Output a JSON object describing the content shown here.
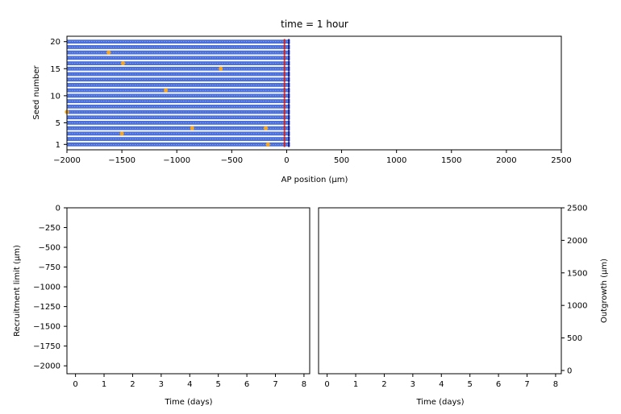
{
  "chart_data": [
    {
      "type": "scatter",
      "title": "time = 1 hour",
      "xlabel": "AP position (μm)",
      "ylabel": "Seed number",
      "xlim": [
        -2000,
        2500
      ],
      "ylim": [
        0,
        21
      ],
      "xticks": [
        "−2000",
        "−1500",
        "−1000",
        "−500",
        "0",
        "500",
        "1000",
        "1500",
        "2000",
        "2500"
      ],
      "yticks": [
        "1",
        "5",
        "10",
        "15",
        "20"
      ],
      "seeds": 20,
      "cell_extent": [
        -2000,
        30
      ],
      "colors": {
        "cells": "#4a6fd8",
        "recruited": "#f5a623",
        "boundary": "#cc2222",
        "tip": "#1a1a8c"
      },
      "recruited_cells": [
        {
          "x": -1620,
          "y": 18
        },
        {
          "x": -1490,
          "y": 16
        },
        {
          "x": -600,
          "y": 15
        },
        {
          "x": -1100,
          "y": 11
        },
        {
          "x": -2000,
          "y": 7
        },
        {
          "x": -860,
          "y": 4
        },
        {
          "x": -190,
          "y": 4
        },
        {
          "x": -1500,
          "y": 3
        },
        {
          "x": -170,
          "y": 1
        }
      ]
    },
    {
      "type": "line",
      "xlabel": "Time (days)",
      "ylabel": "Recruitment limit (μm)",
      "xlim": [
        -0.3,
        8.2
      ],
      "ylim": [
        -2100,
        0
      ],
      "xticks": [
        "0",
        "1",
        "2",
        "3",
        "4",
        "5",
        "6",
        "7",
        "8"
      ],
      "yticks": [
        "0",
        "−250",
        "−500",
        "−750",
        "−1000",
        "−1250",
        "−1500",
        "−1750",
        "−2000"
      ],
      "series": []
    },
    {
      "type": "line",
      "xlabel": "Time (days)",
      "ylabel": "Outgrowth (μm)",
      "xlim": [
        -0.3,
        8.2
      ],
      "ylim": [
        -50,
        2500
      ],
      "xticks": [
        "0",
        "1",
        "2",
        "3",
        "4",
        "5",
        "6",
        "7",
        "8"
      ],
      "yticks": [
        "0",
        "500",
        "1000",
        "1500",
        "2000",
        "2500"
      ],
      "series": []
    }
  ]
}
